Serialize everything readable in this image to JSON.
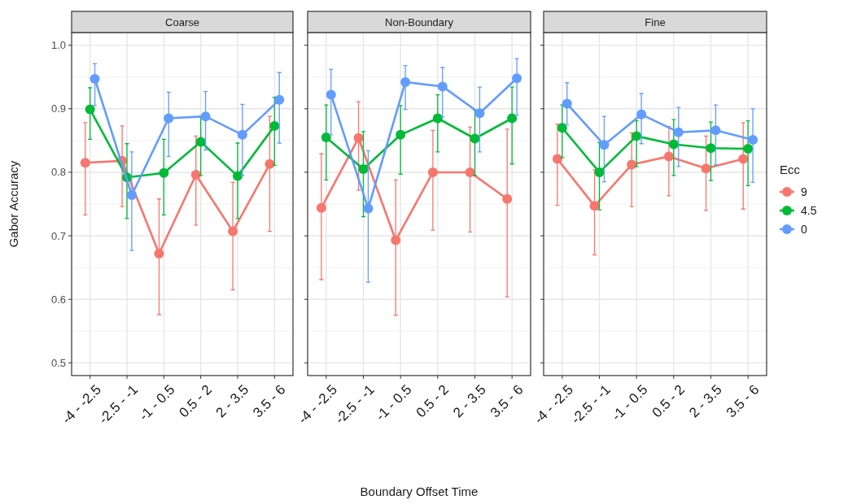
{
  "chart_data": [
    {
      "type": "line",
      "title": "Coarse",
      "ylabel": "Gabor Accuracy",
      "categories": [
        "-4 - -2.5",
        "-2.5 - -1",
        "-1 - 0.5",
        "0.5 - 2",
        "2 - 3.5",
        "3.5 - 6"
      ],
      "ylim": [
        0.48,
        1.02
      ],
      "yticks": [
        0.5,
        0.6,
        0.7,
        0.8,
        0.9,
        {
          "value": 1,
          "label": "1.0"
        }
      ],
      "grid": true,
      "marker": "circle",
      "legend": false,
      "series": [
        {
          "color": "#f8766d",
          "values": [
            0.815,
            0.818,
            0.672,
            0.796,
            0.707,
            0.813
          ],
          "errors": [
            [
              0.733,
              0.878
            ],
            [
              0.746,
              0.873
            ],
            [
              0.576,
              0.758
            ],
            [
              0.717,
              0.857
            ],
            [
              0.615,
              0.784
            ],
            [
              0.707,
              0.888
            ]
          ]
        },
        {
          "color": "#00ba38",
          "values": [
            0.899,
            0.792,
            0.799,
            0.848,
            0.794,
            0.873
          ],
          "errors": [
            [
              0.852,
              0.933
            ],
            [
              0.727,
              0.845
            ],
            [
              0.733,
              0.852
            ],
            [
              0.795,
              0.887
            ],
            [
              0.727,
              0.846
            ],
            [
              0.811,
              0.918
            ]
          ]
        },
        {
          "color": "#619cff",
          "values": [
            0.947,
            0.764,
            0.885,
            0.888,
            0.859,
            0.914
          ],
          "errors": [
            [
              0.905,
              0.971
            ],
            [
              0.677,
              0.832
            ],
            [
              0.825,
              0.926
            ],
            [
              0.835,
              0.927
            ],
            [
              0.795,
              0.907
            ],
            [
              0.846,
              0.957
            ]
          ]
        }
      ]
    },
    {
      "type": "line",
      "title": "Non-Boundary",
      "xlabel": "Boundary Offset Time",
      "categories": [
        "-4 - -2.5",
        "-2.5 - -1",
        "-1 - 0.5",
        "0.5 - 2",
        "2 - 3.5",
        "3.5 - 6"
      ],
      "ylim": [
        0.48,
        1.02
      ],
      "yticks": [
        0.5,
        0.6,
        0.7,
        0.8,
        0.9,
        1
      ],
      "tick_labels": "x",
      "grid": true,
      "marker": "circle",
      "legend": false,
      "series": [
        {
          "color": "#f8766d",
          "values": [
            0.744,
            0.854,
            0.693,
            0.8,
            0.8,
            0.758
          ],
          "errors": [
            [
              0.631,
              0.829
            ],
            [
              0.772,
              0.911
            ],
            [
              0.575,
              0.788
            ],
            [
              0.709,
              0.866
            ],
            [
              0.706,
              0.871
            ],
            [
              0.604,
              0.868
            ]
          ]
        },
        {
          "color": "#00ba38",
          "values": [
            0.855,
            0.805,
            0.859,
            0.885,
            0.853,
            0.885
          ],
          "errors": [
            [
              0.788,
              0.906
            ],
            [
              0.73,
              0.864
            ],
            [
              0.797,
              0.905
            ],
            [
              0.832,
              0.922
            ],
            [
              0.795,
              0.898
            ],
            [
              0.813,
              0.934
            ]
          ]
        },
        {
          "color": "#619cff",
          "values": [
            0.922,
            0.743,
            0.942,
            0.935,
            0.893,
            0.948
          ],
          "errors": [
            [
              0.859,
              0.962
            ],
            [
              0.627,
              0.834
            ],
            [
              0.899,
              0.968
            ],
            [
              0.887,
              0.965
            ],
            [
              0.832,
              0.934
            ],
            [
              0.89,
              0.979
            ]
          ]
        }
      ]
    },
    {
      "type": "line",
      "title": "Fine",
      "legend_title": "Ecc",
      "categories": [
        "-4 - -2.5",
        "-2.5 - -1",
        "-1 - 0.5",
        "0.5 - 2",
        "2 - 3.5",
        "3.5 - 6"
      ],
      "ylim": [
        0.48,
        1.02
      ],
      "yticks": [
        0.5,
        0.6,
        0.7,
        0.8,
        0.9,
        1
      ],
      "tick_labels": "x",
      "grid": true,
      "marker": "circle",
      "legend": "right",
      "series": [
        {
          "name": "9",
          "color": "#f8766d",
          "values": [
            0.821,
            0.747,
            0.812,
            0.825,
            0.806,
            0.821
          ],
          "errors": [
            [
              0.748,
              0.876
            ],
            [
              0.67,
              0.804
            ],
            [
              0.746,
              0.862
            ],
            [
              0.763,
              0.872
            ],
            [
              0.74,
              0.857
            ],
            [
              0.742,
              0.878
            ]
          ]
        },
        {
          "name": "4.5",
          "color": "#00ba38",
          "values": [
            0.87,
            0.8,
            0.857,
            0.844,
            0.838,
            0.837
          ],
          "errors": [
            [
              0.823,
              0.906
            ],
            [
              0.741,
              0.847
            ],
            [
              0.809,
              0.881
            ],
            [
              0.795,
              0.883
            ],
            [
              0.787,
              0.879
            ],
            [
              0.779,
              0.881
            ]
          ]
        },
        {
          "name": "0",
          "color": "#619cff",
          "values": [
            0.908,
            0.843,
            0.891,
            0.863,
            0.866,
            0.851
          ],
          "errors": [
            [
              0.875,
              0.941
            ],
            [
              0.785,
              0.888
            ],
            [
              0.845,
              0.924
            ],
            [
              0.809,
              0.902
            ],
            [
              0.812,
              0.906
            ],
            [
              0.784,
              0.9
            ]
          ]
        }
      ]
    }
  ]
}
